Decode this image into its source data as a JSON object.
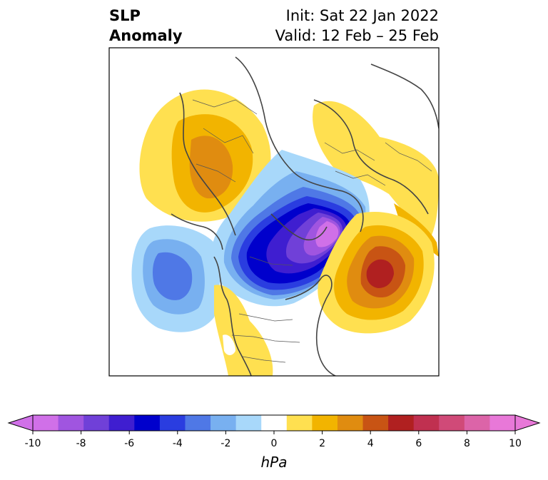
{
  "header": {
    "field_line1": "SLP",
    "field_line2": "Anomaly",
    "init_line": "Init: Sat 22 Jan 2022",
    "valid_line": "Valid: 12 Feb – 25 Feb"
  },
  "colorbar": {
    "unit_label": "hPa",
    "tick_labels": [
      "-10",
      "-8",
      "-6",
      "-4",
      "-2",
      "0",
      "2",
      "4",
      "6",
      "8",
      "10"
    ],
    "levels": [
      -10,
      -9,
      -8,
      -7,
      -6,
      -5,
      -4,
      -3,
      -2,
      -1,
      1,
      2,
      3,
      4,
      5,
      6,
      7,
      8,
      9,
      10
    ],
    "colors": [
      "#d070e8",
      "#a055e0",
      "#7040d8",
      "#3f1ed0",
      "#0000cc",
      "#2a3de0",
      "#4f78e6",
      "#78b0f0",
      "#a8d8fa",
      "#ffffff",
      "#ffe050",
      "#f2b400",
      "#e08c10",
      "#c85414",
      "#b02020",
      "#c03050",
      "#d04a78",
      "#dc64a8",
      "#e878d8"
    ],
    "extend_min_color": "#d070e8",
    "extend_max_color": "#e878d8"
  },
  "map": {
    "projection": "north polar stereographic",
    "anomalies": [
      {
        "name": "negative-center-canada-arctic",
        "peak_hpa": -9
      },
      {
        "name": "negative-center-north-pacific",
        "peak_hpa": -4
      },
      {
        "name": "positive-center-north-atlantic",
        "peak_hpa": 6
      },
      {
        "name": "positive-center-siberia",
        "peak_hpa": 3
      },
      {
        "name": "positive-center-europe",
        "peak_hpa": 1
      },
      {
        "name": "positive-center-western-us",
        "peak_hpa": 1
      }
    ]
  }
}
